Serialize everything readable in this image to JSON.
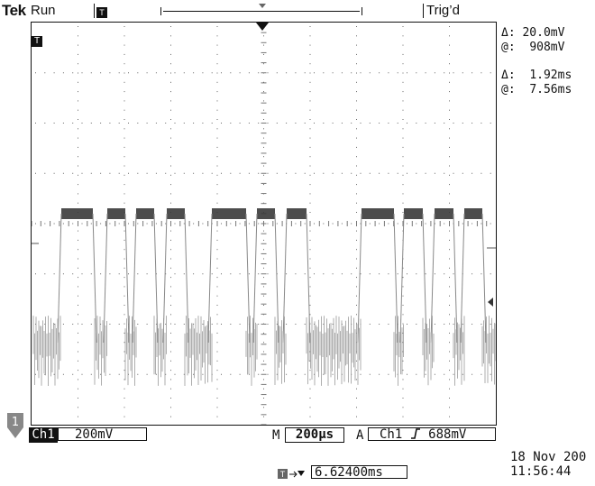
{
  "header": {
    "brand": "Tek",
    "status": "Run",
    "trigger_status": "Trig’d"
  },
  "cursor_readouts": [
    {
      "label": "Δ:",
      "value": "20.0mV"
    },
    {
      "label": "@:",
      "value": "908mV"
    },
    {
      "label": "Δ:",
      "value": "1.92ms"
    },
    {
      "label": "@:",
      "value": "7.56ms"
    }
  ],
  "channel": {
    "name": "Ch1",
    "marker": "1",
    "scale": "200mV"
  },
  "timebase": {
    "prefix": "M",
    "value": "200μs"
  },
  "trigger": {
    "prefix": "A",
    "source": "Ch1",
    "slope_icon": "rising-edge",
    "level": "688mV"
  },
  "delay": {
    "value": "6.62400ms"
  },
  "datetime": {
    "date": "18 Nov 200",
    "time": "11:56:44"
  },
  "icons": {
    "trigger_position": "trigger-position-icon",
    "delay_arrow": "delay-arrow-icon",
    "slope": "rising-edge-icon"
  }
}
